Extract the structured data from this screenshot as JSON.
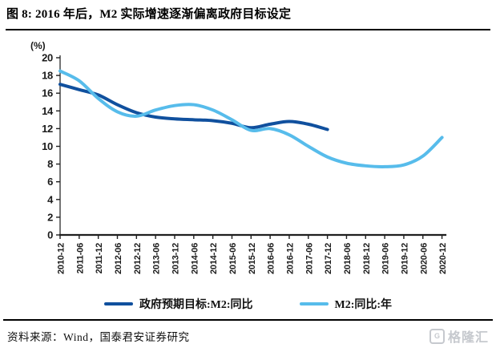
{
  "header": {
    "title": "图 8: 2016 年后，M2 实际增速逐渐偏离政府目标设定"
  },
  "chart_data": {
    "type": "line",
    "title": "",
    "xlabel": "",
    "ylabel": "(%)",
    "ylim": [
      0,
      20
    ],
    "ytick_step": 2,
    "grid": false,
    "legend_position": "bottom",
    "axis_color": "#1f1f1f",
    "categories": [
      "2010-12",
      "2011-06",
      "2011-12",
      "2012-06",
      "2012-12",
      "2013-06",
      "2013-12",
      "2014-06",
      "2014-12",
      "2015-06",
      "2015-12",
      "2016-06",
      "2016-12",
      "2017-06",
      "2017-12",
      "2018-06",
      "2018-12",
      "2019-06",
      "2019-12",
      "2020-06",
      "2020-12"
    ],
    "series": [
      {
        "id": "gov-target",
        "name": "政府预期目标:M2:同比",
        "color": "#10509E",
        "values": [
          17.0,
          16.4,
          15.8,
          14.7,
          13.8,
          13.3,
          13.1,
          13.0,
          12.9,
          12.6,
          12.1,
          12.5,
          12.8,
          12.5,
          11.9
        ]
      },
      {
        "id": "m2-actual",
        "name": "M2:同比:年",
        "color": "#57BCEB",
        "values": [
          18.5,
          17.4,
          15.4,
          13.9,
          13.4,
          14.1,
          14.6,
          14.7,
          14.1,
          13.0,
          11.8,
          12.0,
          11.3,
          10.0,
          8.8,
          8.1,
          7.8,
          7.7,
          7.9,
          8.9,
          11.0
        ]
      }
    ]
  },
  "footer": {
    "source": "资料来源：Wind，国泰君安证券研究",
    "logo_icon": "G",
    "logo_text": "格隆汇"
  }
}
